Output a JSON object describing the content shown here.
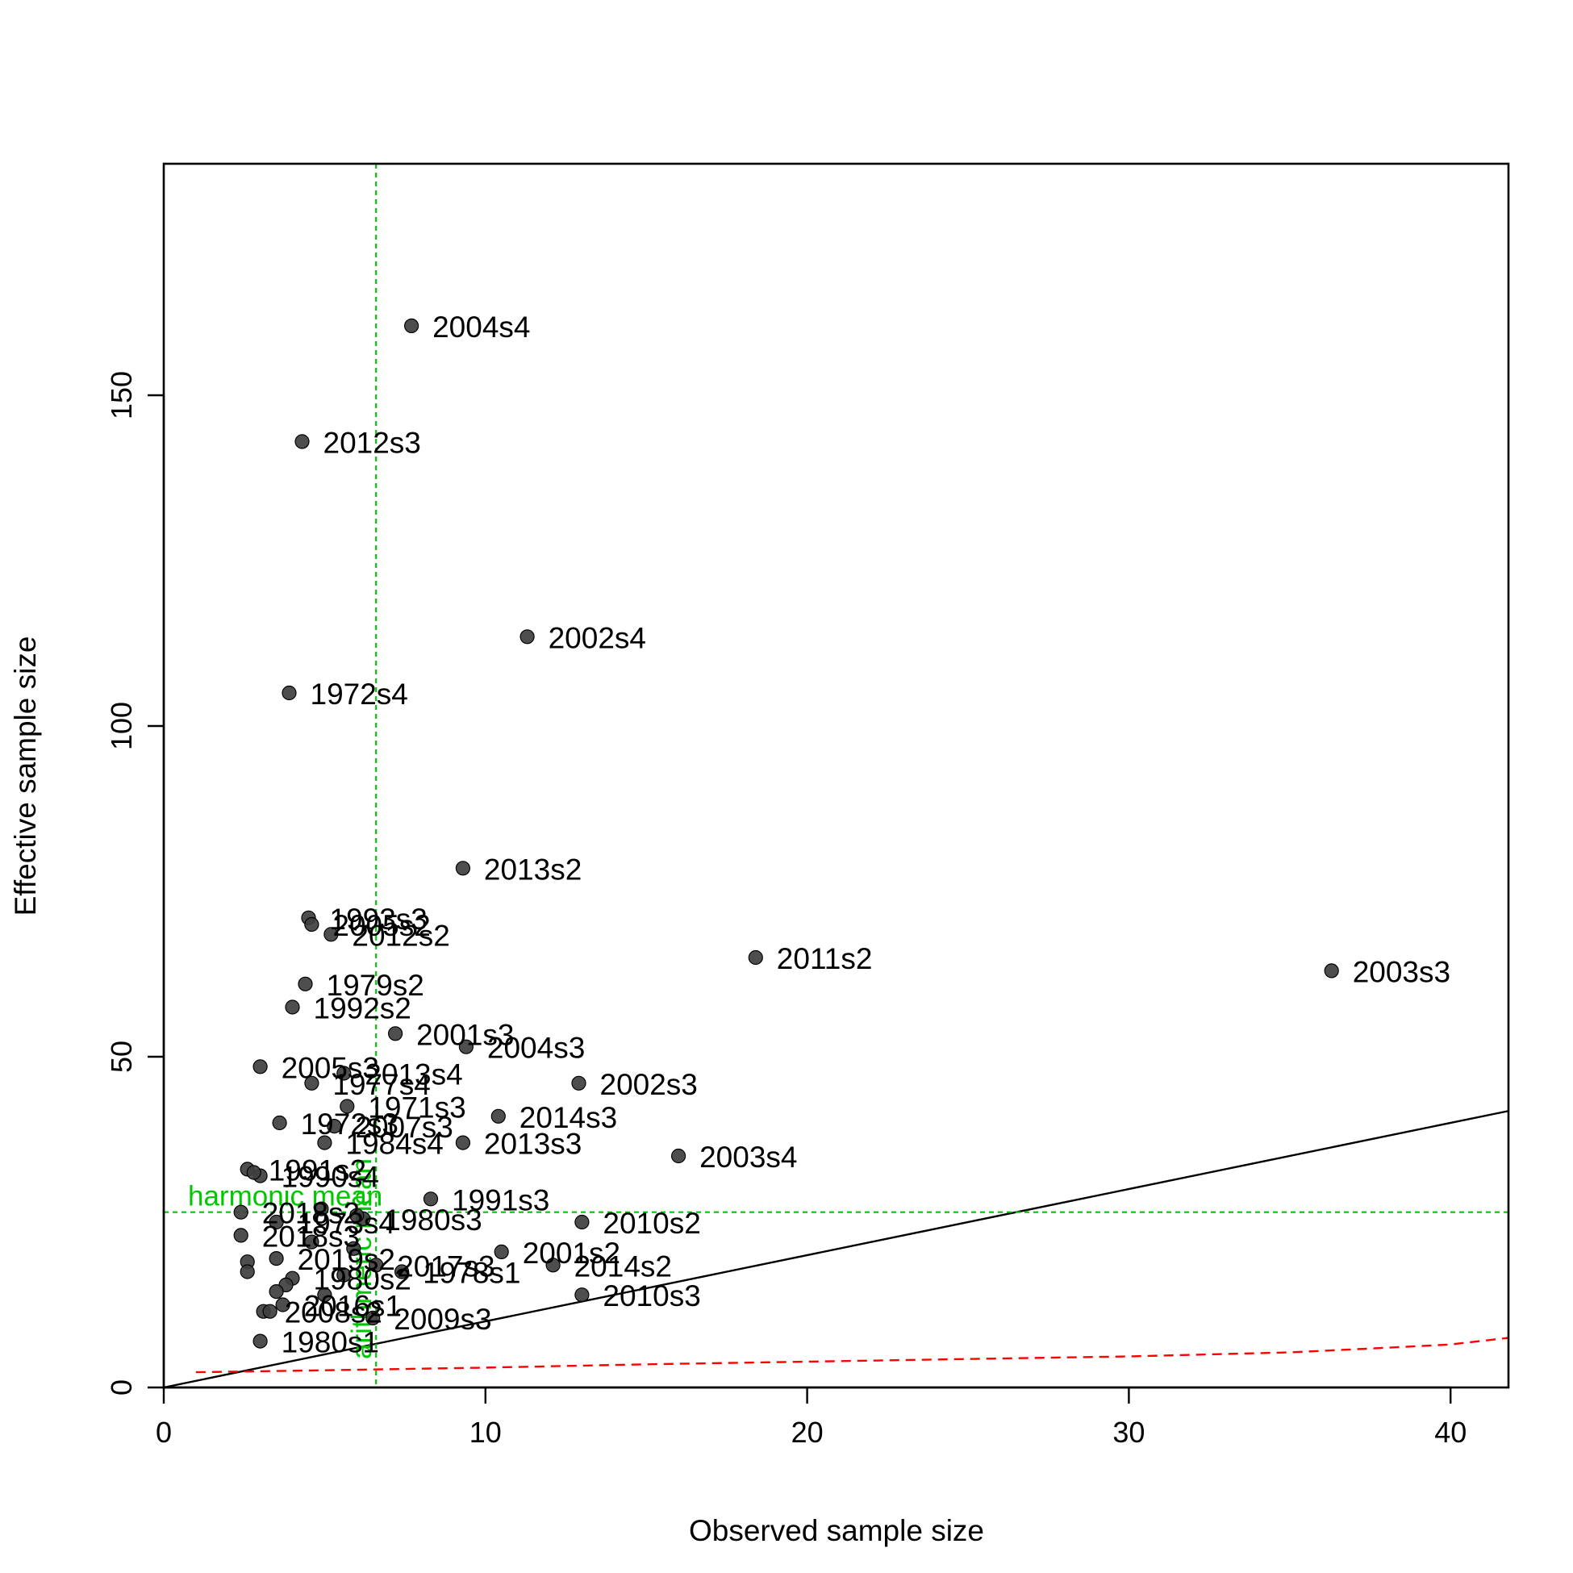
{
  "chart_data": {
    "type": "scatter",
    "xlabel": "Observed sample size",
    "ylabel": "Effective sample size",
    "xlim": [
      0,
      41.8
    ],
    "ylim": [
      0,
      185
    ],
    "x_ticks": [
      0,
      10,
      20,
      30,
      40
    ],
    "y_ticks": [
      0,
      50,
      100,
      150
    ],
    "grid": false,
    "colors": {
      "points": "#3f3f3f",
      "reference": "#00c800",
      "trend": "#ff0000",
      "identity": "#000000"
    },
    "points": [
      {
        "label": "2004s4",
        "x": 7.7,
        "y": 160.5
      },
      {
        "label": "2012s3",
        "x": 4.3,
        "y": 143.0
      },
      {
        "label": "2002s4",
        "x": 11.3,
        "y": 113.5
      },
      {
        "label": "1972s4",
        "x": 3.9,
        "y": 105.0
      },
      {
        "label": "2013s2",
        "x": 9.3,
        "y": 78.5
      },
      {
        "label": "1993s3",
        "x": 4.5,
        "y": 71.0
      },
      {
        "label": "2005s2",
        "x": 4.6,
        "y": 70.0
      },
      {
        "label": "2012s2",
        "x": 5.2,
        "y": 68.5
      },
      {
        "label": "2011s2",
        "x": 18.4,
        "y": 65.0
      },
      {
        "label": "2003s3",
        "x": 36.3,
        "y": 63.0
      },
      {
        "label": "1979s2",
        "x": 4.4,
        "y": 61.0
      },
      {
        "label": "1992s2",
        "x": 4.0,
        "y": 57.5
      },
      {
        "label": "2001s3",
        "x": 7.2,
        "y": 53.5
      },
      {
        "label": "2004s3",
        "x": 9.4,
        "y": 51.5
      },
      {
        "label": "2005s3",
        "x": 3.0,
        "y": 48.5
      },
      {
        "label": "2013s4",
        "x": 5.6,
        "y": 47.5
      },
      {
        "label": "2002s3",
        "x": 12.9,
        "y": 46.0
      },
      {
        "label": "1977s4",
        "x": 4.6,
        "y": 46.0
      },
      {
        "label": "1971s3",
        "x": 5.7,
        "y": 42.5
      },
      {
        "label": "2014s3",
        "x": 10.4,
        "y": 41.0
      },
      {
        "label": "1972s3",
        "x": 3.6,
        "y": 40.0
      },
      {
        "label": "2007s3",
        "x": 5.3,
        "y": 39.5
      },
      {
        "label": "1984s4",
        "x": 5.0,
        "y": 37.0
      },
      {
        "label": "2013s3",
        "x": 9.3,
        "y": 37.0
      },
      {
        "label": "2003s4",
        "x": 16.0,
        "y": 35.0
      },
      {
        "label": "1991s2",
        "x": 2.6,
        "y": 33.0
      },
      {
        "label": "1990s4",
        "x": 3.0,
        "y": 32.0
      },
      {
        "label": "1991s3",
        "x": 8.3,
        "y": 28.5
      },
      {
        "label": "1980s3",
        "x": 6.2,
        "y": 25.5
      },
      {
        "label": "2010s2",
        "x": 13.0,
        "y": 25.0
      },
      {
        "label": "2018s2",
        "x": 2.4,
        "y": 26.5
      },
      {
        "label": "1973s4",
        "x": 3.5,
        "y": 25.0
      },
      {
        "label": "2018s3",
        "x": 2.4,
        "y": 23.0
      },
      {
        "label": "2001s2",
        "x": 10.5,
        "y": 20.5
      },
      {
        "label": "2014s2",
        "x": 12.1,
        "y": 18.5
      },
      {
        "label": "2017s3",
        "x": 6.6,
        "y": 18.5
      },
      {
        "label": "2019s2",
        "x": 3.5,
        "y": 19.5
      },
      {
        "label": "1978s1",
        "x": 7.4,
        "y": 17.5
      },
      {
        "label": "1980s2",
        "x": 4.0,
        "y": 16.5
      },
      {
        "label": "2010s3",
        "x": 13.0,
        "y": 14.0
      },
      {
        "label": "2016s1",
        "x": 3.7,
        "y": 12.5
      },
      {
        "label": "2008s2",
        "x": 3.1,
        "y": 11.5
      },
      {
        "label": "2009s3",
        "x": 6.5,
        "y": 10.5
      },
      {
        "label": "1980s1",
        "x": 3.0,
        "y": 7.0
      }
    ],
    "unlabeled_points": [
      {
        "x": 2.8,
        "y": 32.5
      },
      {
        "x": 2.6,
        "y": 19.0
      },
      {
        "x": 2.6,
        "y": 17.5
      },
      {
        "x": 3.8,
        "y": 15.5
      },
      {
        "x": 3.5,
        "y": 14.5
      },
      {
        "x": 3.3,
        "y": 11.5
      },
      {
        "x": 5.9,
        "y": 21.0
      },
      {
        "x": 5.6,
        "y": 17.0
      },
      {
        "x": 5.0,
        "y": 14.0
      },
      {
        "x": 4.9,
        "y": 27.0
      },
      {
        "x": 6.0,
        "y": 26.0
      },
      {
        "x": 4.6,
        "y": 22.0
      }
    ],
    "lines": {
      "arithmetic_mean_x": 6.6,
      "harmonic_mean_y": 26.5,
      "identity_slope": 1,
      "red_dashed": [
        {
          "x": 1.0,
          "y": 2.3
        },
        {
          "x": 5,
          "y": 2.6
        },
        {
          "x": 10,
          "y": 3.0
        },
        {
          "x": 15,
          "y": 3.5
        },
        {
          "x": 20,
          "y": 3.9
        },
        {
          "x": 25,
          "y": 4.3
        },
        {
          "x": 30,
          "y": 4.7
        },
        {
          "x": 35,
          "y": 5.3
        },
        {
          "x": 38,
          "y": 6.0
        },
        {
          "x": 40,
          "y": 6.5
        },
        {
          "x": 41.8,
          "y": 7.5
        }
      ]
    },
    "annotations": {
      "harmonic_label": "harmonic mean",
      "arithmetic_label": "arithmetic mean"
    }
  }
}
